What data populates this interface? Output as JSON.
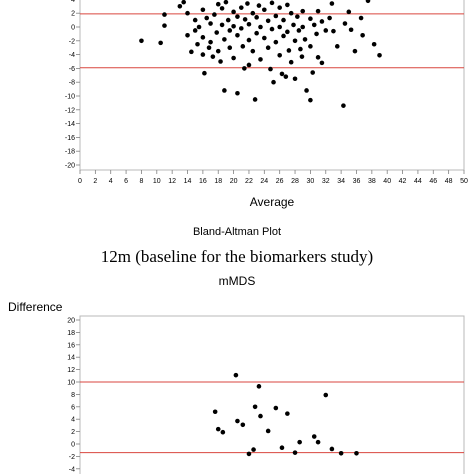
{
  "chart_data": [
    {
      "type": "scatter",
      "xlabel": "Average",
      "ylabel": "Difference",
      "xlim": [
        0,
        50
      ],
      "ylim": [
        -20,
        4
      ],
      "x_ticks": [
        0,
        2,
        4,
        6,
        8,
        10,
        12,
        14,
        16,
        18,
        20,
        22,
        24,
        26,
        28,
        30,
        32,
        34,
        36,
        38,
        40,
        42,
        44,
        46,
        48,
        50
      ],
      "y_ticks": [
        4,
        2,
        0,
        -2,
        -4,
        -6,
        -8,
        -10,
        -12,
        -14,
        -16,
        -18,
        -20
      ],
      "reference_lines": [
        1.9,
        -5.9
      ],
      "reference_color": "#d9463f",
      "point_color": "#000000",
      "points": [
        [
          8,
          -2
        ],
        [
          10.5,
          -2.3
        ],
        [
          11,
          0.2
        ],
        [
          11,
          1.8
        ],
        [
          13,
          3.0
        ],
        [
          13.5,
          3.6
        ],
        [
          14,
          2.0
        ],
        [
          14,
          -1.2
        ],
        [
          14.5,
          -3.6
        ],
        [
          15,
          1.0
        ],
        [
          15,
          -0.5
        ],
        [
          15.3,
          -2.5
        ],
        [
          15.5,
          0.0
        ],
        [
          16,
          2.5
        ],
        [
          16,
          -1.5
        ],
        [
          16,
          -4.0
        ],
        [
          16.2,
          -6.7
        ],
        [
          16.5,
          1.3
        ],
        [
          16.8,
          -3.0
        ],
        [
          17,
          0.5
        ],
        [
          17,
          -2.2
        ],
        [
          17.3,
          -4.3
        ],
        [
          17.5,
          1.8
        ],
        [
          17.8,
          -0.8
        ],
        [
          18,
          3.3
        ],
        [
          18,
          -3.5
        ],
        [
          18.3,
          -5.0
        ],
        [
          18.5,
          2.7
        ],
        [
          18.5,
          0.3
        ],
        [
          18.8,
          -1.8
        ],
        [
          18.8,
          -9.2
        ],
        [
          19,
          3.6
        ],
        [
          19.3,
          1.0
        ],
        [
          19.5,
          -0.5
        ],
        [
          19.5,
          -3.0
        ],
        [
          20,
          2.2
        ],
        [
          20,
          0.1
        ],
        [
          20,
          -4.5
        ],
        [
          20.5,
          1.5
        ],
        [
          20.5,
          -1.2
        ],
        [
          20.5,
          -9.6
        ],
        [
          21,
          2.8
        ],
        [
          21,
          -0.2
        ],
        [
          21.2,
          -2.8
        ],
        [
          21.4,
          -6.0
        ],
        [
          21.5,
          1.1
        ],
        [
          21.8,
          3.4
        ],
        [
          22,
          0.4
        ],
        [
          22,
          -1.9
        ],
        [
          22,
          -5.5
        ],
        [
          22.5,
          2.0
        ],
        [
          22.5,
          -3.5
        ],
        [
          22.8,
          -10.5
        ],
        [
          23,
          1.4
        ],
        [
          23,
          -0.9
        ],
        [
          23.3,
          3.1
        ],
        [
          23.5,
          0.0
        ],
        [
          23.5,
          -4.7
        ],
        [
          24,
          2.5
        ],
        [
          24,
          -1.6
        ],
        [
          24.5,
          0.9
        ],
        [
          24.5,
          -3.0
        ],
        [
          24.8,
          -6.1
        ],
        [
          25,
          3.5
        ],
        [
          25,
          -0.3
        ],
        [
          25.2,
          -8.0
        ],
        [
          25.5,
          1.6
        ],
        [
          25.5,
          -2.2
        ],
        [
          26,
          2.8
        ],
        [
          26,
          0.0
        ],
        [
          26,
          -4.1
        ],
        [
          26.3,
          -6.8
        ],
        [
          26.5,
          1.0
        ],
        [
          26.5,
          -1.3
        ],
        [
          26.8,
          -7.2
        ],
        [
          27,
          3.2
        ],
        [
          27,
          -0.7
        ],
        [
          27.2,
          -3.4
        ],
        [
          27.5,
          2.0
        ],
        [
          27.5,
          -5.1
        ],
        [
          27.8,
          0.3
        ],
        [
          28,
          -2.0
        ],
        [
          28,
          -7.5
        ],
        [
          28.3,
          1.5
        ],
        [
          28.5,
          -0.5
        ],
        [
          28.7,
          -3.2
        ],
        [
          28.9,
          -4.3
        ],
        [
          29,
          2.3
        ],
        [
          29,
          0.0
        ],
        [
          29.3,
          -1.8
        ],
        [
          29.5,
          -9.2
        ],
        [
          30,
          1.2
        ],
        [
          30,
          -2.8
        ],
        [
          30,
          -10.6
        ],
        [
          30.3,
          -6.6
        ],
        [
          30.5,
          0.3
        ],
        [
          30.8,
          -1.0
        ],
        [
          31,
          2.3
        ],
        [
          31,
          -4.4
        ],
        [
          31.5,
          0.8
        ],
        [
          31.5,
          -5.2
        ],
        [
          32,
          -0.5
        ],
        [
          32.5,
          1.3
        ],
        [
          32.8,
          3.4
        ],
        [
          33,
          -0.6
        ],
        [
          33.5,
          -2.8
        ],
        [
          34.3,
          -11.4
        ],
        [
          34.5,
          0.5
        ],
        [
          35,
          2.2
        ],
        [
          35.3,
          -0.4
        ],
        [
          35.8,
          -3.5
        ],
        [
          36.6,
          1.3
        ],
        [
          36.8,
          -1.2
        ],
        [
          37.5,
          3.8
        ],
        [
          38.3,
          -2.5
        ],
        [
          39,
          -4.1
        ]
      ]
    },
    {
      "type": "scatter",
      "title": "Bland-Altman Plot",
      "subtitle": "12m (baseline for the biomarkers study)",
      "measure": "mMDS",
      "ylabel": "Difference",
      "ylim": [
        -4,
        20
      ],
      "y_ticks": [
        20,
        18,
        16,
        14,
        12,
        10,
        8,
        6,
        4,
        2,
        0,
        -2,
        -4
      ],
      "reference_lines": [
        10.0,
        -1.4
      ],
      "reference_color": "#d9463f",
      "point_color": "#000000",
      "points": [
        [
          17.6,
          5.2
        ],
        [
          18,
          2.4
        ],
        [
          18.6,
          1.9
        ],
        [
          20.3,
          11.1
        ],
        [
          20.5,
          3.7
        ],
        [
          21.2,
          3.1
        ],
        [
          22,
          -1.6
        ],
        [
          22.6,
          -0.9
        ],
        [
          22.8,
          6.0
        ],
        [
          23.3,
          9.3
        ],
        [
          23.5,
          4.5
        ],
        [
          24.5,
          2.1
        ],
        [
          25.5,
          5.8
        ],
        [
          26.3,
          -0.6
        ],
        [
          27,
          4.9
        ],
        [
          28,
          -1.4
        ],
        [
          28.6,
          0.3
        ],
        [
          30.5,
          1.2
        ],
        [
          31,
          0.3
        ],
        [
          32,
          7.9
        ],
        [
          32.8,
          -0.8
        ],
        [
          34,
          -1.5
        ],
        [
          36,
          -1.5
        ]
      ]
    }
  ]
}
